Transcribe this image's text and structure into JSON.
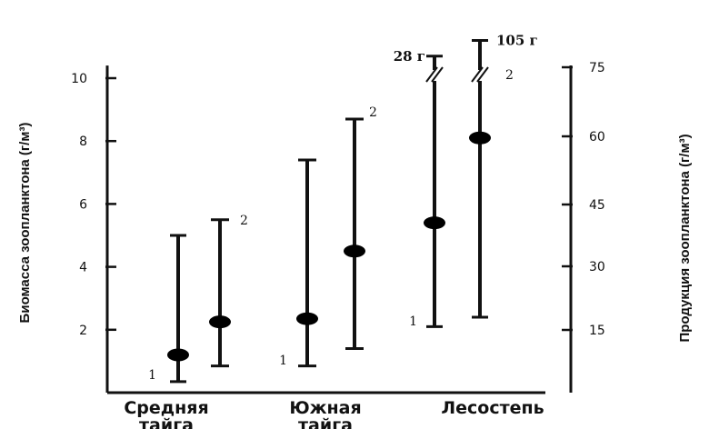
{
  "chart_data": {
    "type": "errorbar",
    "y_left": {
      "label": "Биомасса зоопланктона (г/м³)",
      "ticks": [
        "2",
        "4",
        "6",
        "8",
        "10"
      ],
      "tick_values": [
        2,
        4,
        6,
        8,
        10
      ],
      "range": [
        0,
        10.4
      ]
    },
    "y_right": {
      "label": "Продукция зоопланктона (г/м³)",
      "ticks": [
        "15",
        "30",
        "45",
        "60",
        "75"
      ]
    },
    "categories": [
      "Средняя тайга",
      "Южная тайга",
      "Лесостепь"
    ],
    "category_lines": [
      [
        "Средняя",
        "тайга"
      ],
      [
        "Южная",
        "тайга"
      ],
      [
        "Лесостепь"
      ]
    ],
    "series_names": [
      "1",
      "2"
    ],
    "points": [
      {
        "category": "Средняя тайга",
        "series": "1",
        "mean": 1.2,
        "low": 0.35,
        "high": 5.0
      },
      {
        "category": "Средняя тайга",
        "series": "2",
        "mean": 2.25,
        "low": 0.85,
        "high": 5.5
      },
      {
        "category": "Южная тайга",
        "series": "1",
        "mean": 2.35,
        "low": 0.85,
        "high": 7.4
      },
      {
        "category": "Южная тайга",
        "series": "2",
        "mean": 4.5,
        "low": 1.4,
        "high": 8.7
      },
      {
        "category": "Лесостепь",
        "series": "1",
        "mean": 5.4,
        "low": 2.1,
        "high": 10.7,
        "break": true,
        "top_label": "28 г"
      },
      {
        "category": "Лесостепь",
        "series": "2",
        "mean": 8.1,
        "low": 2.4,
        "high": 11.2,
        "break": true,
        "top_label": "105 г"
      }
    ],
    "grid": false,
    "legend": "none"
  }
}
